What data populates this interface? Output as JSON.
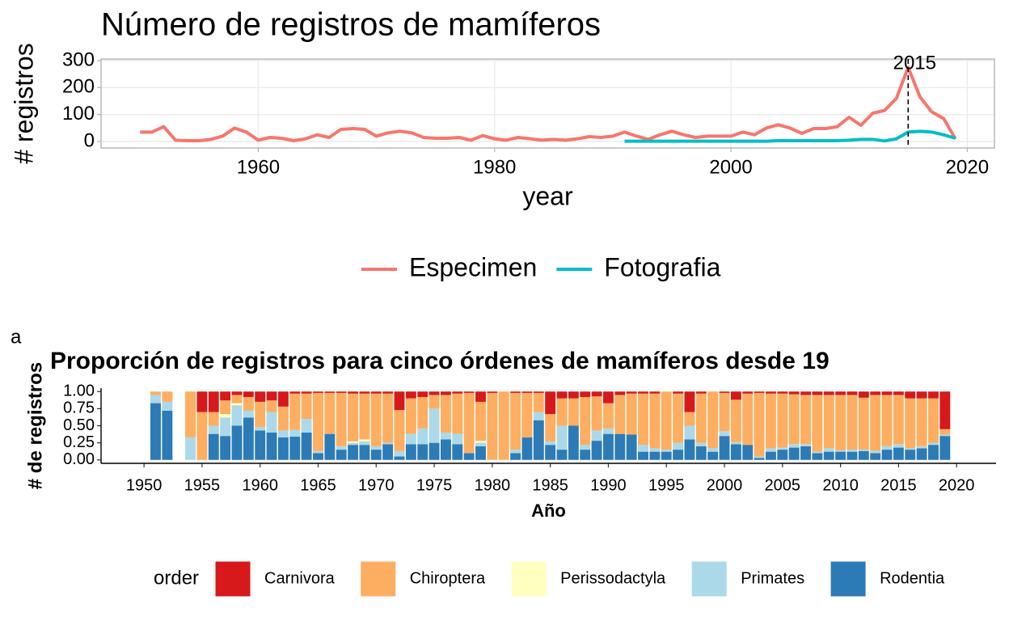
{
  "chart_data": [
    {
      "type": "line",
      "title": "Número de registros de mamíferos",
      "x_label": "year",
      "y_label": "# registros",
      "x": [
        1950,
        1951,
        1952,
        1953,
        1954,
        1955,
        1956,
        1957,
        1958,
        1959,
        1960,
        1961,
        1962,
        1963,
        1964,
        1965,
        1966,
        1967,
        1968,
        1969,
        1970,
        1971,
        1972,
        1973,
        1974,
        1975,
        1976,
        1977,
        1978,
        1979,
        1980,
        1981,
        1982,
        1983,
        1984,
        1985,
        1986,
        1987,
        1988,
        1989,
        1990,
        1991,
        1992,
        1993,
        1994,
        1995,
        1996,
        1997,
        1998,
        1999,
        2000,
        2001,
        2002,
        2003,
        2004,
        2005,
        2006,
        2007,
        2008,
        2009,
        2010,
        2011,
        2012,
        2013,
        2014,
        2015,
        2016,
        2017,
        2018,
        2019
      ],
      "series": [
        {
          "name": "Especimen",
          "color": "#F8766D",
          "values": [
            35,
            35,
            55,
            5,
            3,
            3,
            8,
            20,
            50,
            35,
            5,
            15,
            12,
            3,
            10,
            25,
            15,
            45,
            48,
            45,
            20,
            32,
            38,
            32,
            15,
            12,
            12,
            15,
            5,
            22,
            10,
            5,
            15,
            10,
            5,
            8,
            5,
            10,
            18,
            15,
            20,
            35,
            20,
            8,
            25,
            38,
            25,
            15,
            20,
            20,
            20,
            35,
            25,
            50,
            62,
            50,
            30,
            48,
            48,
            55,
            90,
            60,
            105,
            115,
            160,
            275,
            165,
            110,
            85,
            10
          ]
        },
        {
          "name": "Fotografia",
          "color": "#00BFC4",
          "values": [
            null,
            null,
            null,
            null,
            null,
            null,
            null,
            null,
            null,
            null,
            null,
            null,
            null,
            null,
            null,
            null,
            null,
            null,
            null,
            null,
            null,
            null,
            null,
            null,
            null,
            null,
            null,
            null,
            null,
            null,
            null,
            null,
            null,
            null,
            null,
            null,
            null,
            null,
            null,
            null,
            null,
            1,
            1,
            1,
            1,
            1,
            1,
            1,
            1,
            1,
            1,
            1,
            1,
            1,
            3,
            3,
            3,
            3,
            3,
            3,
            5,
            8,
            8,
            2,
            10,
            35,
            38,
            35,
            25,
            12
          ]
        }
      ],
      "xlim": [
        1946.7,
        2022.3
      ],
      "xticks": [
        1960,
        1980,
        2000,
        2020
      ],
      "ylim": [
        -24,
        306
      ],
      "yticks": [
        0,
        100,
        200,
        300
      ],
      "grid": true,
      "legend": "bottom",
      "annotations": [
        {
          "x": 2015,
          "label": "2015"
        }
      ]
    },
    {
      "type": "stacked_bar",
      "tag": "a",
      "title": "Proporción de registros para cinco órdenes de mamíferos desde 19",
      "x_label": "Año",
      "y_label": "# de registros",
      "x": [
        1951,
        1952,
        1954,
        1955,
        1956,
        1957,
        1958,
        1959,
        1960,
        1961,
        1962,
        1963,
        1964,
        1965,
        1966,
        1967,
        1968,
        1969,
        1970,
        1971,
        1972,
        1973,
        1974,
        1975,
        1976,
        1977,
        1978,
        1979,
        1980,
        1981,
        1982,
        1983,
        1984,
        1985,
        1986,
        1987,
        1988,
        1989,
        1990,
        1991,
        1992,
        1993,
        1994,
        1995,
        1996,
        1997,
        1998,
        1999,
        2000,
        2001,
        2002,
        2003,
        2004,
        2005,
        2006,
        2007,
        2008,
        2009,
        2010,
        2011,
        2012,
        2013,
        2014,
        2015,
        2016,
        2017,
        2018,
        2019
      ],
      "series": [
        {
          "name": "Carnivora",
          "color": "#d7191c",
          "values": [
            0,
            0,
            0,
            0.3,
            0.3,
            0.13,
            0.05,
            0.08,
            0.15,
            0.13,
            0.22,
            0.03,
            0.03,
            0.02,
            0.02,
            0.02,
            0.03,
            0.03,
            0.03,
            0.03,
            0.27,
            0.1,
            0.08,
            0.05,
            0.05,
            0.03,
            0.02,
            0.15,
            0.02,
            0,
            0.02,
            0.02,
            0.02,
            0.33,
            0.1,
            0.1,
            0.08,
            0.07,
            0.17,
            0.05,
            0.03,
            0.03,
            0.03,
            0,
            0.03,
            0.3,
            0.03,
            0,
            0.02,
            0.12,
            0.03,
            0.02,
            0.03,
            0.03,
            0.04,
            0.05,
            0.05,
            0.05,
            0.05,
            0.05,
            0.09,
            0.05,
            0.05,
            0.05,
            0.1,
            0.1,
            0.1,
            0.55
          ]
        },
        {
          "name": "Chiroptera",
          "color": "#fdae61",
          "values": [
            0.05,
            0.15,
            0.67,
            0.7,
            0.2,
            0.2,
            0.12,
            0.2,
            0.37,
            0.17,
            0.35,
            0.53,
            0.37,
            0.85,
            0.6,
            0.78,
            0.7,
            0.67,
            0.77,
            0.72,
            0.6,
            0.52,
            0.46,
            0.2,
            0.55,
            0.59,
            0.88,
            0.57,
            0.98,
            1,
            0.83,
            0.65,
            0.28,
            0.4,
            0.4,
            0.4,
            0.7,
            0.5,
            0.37,
            0.57,
            0.6,
            0.75,
            0.8,
            0.85,
            0.72,
            0.2,
            0.72,
            0.83,
            0.56,
            0.62,
            0.75,
            0.93,
            0.8,
            0.79,
            0.73,
            0.72,
            0.83,
            0.78,
            0.81,
            0.8,
            0.76,
            0.82,
            0.75,
            0.72,
            0.73,
            0.7,
            0.65,
            0.08
          ]
        },
        {
          "name": "Perissodactyla",
          "color": "#ffffbf",
          "values": [
            0,
            0,
            0,
            0,
            0,
            0.05,
            0.03,
            0,
            0,
            0,
            0,
            0,
            0,
            0,
            0,
            0,
            0.02,
            0.03,
            0,
            0,
            0,
            0,
            0,
            0,
            0,
            0,
            0,
            0.03,
            0,
            0,
            0,
            0,
            0,
            0,
            0,
            0,
            0,
            0,
            0,
            0,
            0,
            0,
            0,
            0,
            0,
            0,
            0,
            0,
            0,
            0,
            0,
            0,
            0,
            0,
            0,
            0,
            0,
            0,
            0,
            0,
            0,
            0,
            0,
            0,
            0,
            0,
            0,
            0
          ]
        },
        {
          "name": "Primates",
          "color": "#abd9e9",
          "values": [
            0.12,
            0.13,
            0.33,
            0,
            0.12,
            0.27,
            0.3,
            0.1,
            0.05,
            0.3,
            0.1,
            0.1,
            0.2,
            0.03,
            0,
            0.05,
            0.03,
            0.05,
            0.05,
            0.02,
            0.08,
            0.15,
            0.23,
            0.5,
            0.1,
            0.15,
            0,
            0.05,
            0,
            0,
            0.05,
            0,
            0.12,
            0.05,
            0.35,
            0,
            0.07,
            0.15,
            0.08,
            0,
            0,
            0.1,
            0.05,
            0.03,
            0.1,
            0.2,
            0.05,
            0.05,
            0.07,
            0.03,
            0,
            0.02,
            0.05,
            0.03,
            0.05,
            0.03,
            0.02,
            0.05,
            0.02,
            0.03,
            0.02,
            0.03,
            0.05,
            0.05,
            0.02,
            0.03,
            0.03,
            0.02
          ]
        },
        {
          "name": "Rodentia",
          "color": "#2c7bb6",
          "values": [
            0.83,
            0.72,
            0,
            0,
            0.38,
            0.35,
            0.5,
            0.62,
            0.43,
            0.4,
            0.33,
            0.34,
            0.4,
            0.1,
            0.38,
            0.15,
            0.22,
            0.22,
            0.15,
            0.23,
            0.05,
            0.23,
            0.23,
            0.25,
            0.3,
            0.23,
            0.1,
            0.2,
            0,
            0,
            0.1,
            0.33,
            0.58,
            0.22,
            0.15,
            0.5,
            0.15,
            0.28,
            0.38,
            0.38,
            0.37,
            0.12,
            0.12,
            0.12,
            0.15,
            0.3,
            0.2,
            0.12,
            0.35,
            0.23,
            0.22,
            0.03,
            0.12,
            0.15,
            0.18,
            0.2,
            0.1,
            0.12,
            0.12,
            0.12,
            0.13,
            0.1,
            0.15,
            0.18,
            0.15,
            0.17,
            0.22,
            0.35
          ]
        }
      ],
      "xlim": [
        1946.3,
        2023.4
      ],
      "xticks": [
        1950,
        1955,
        1960,
        1965,
        1970,
        1975,
        1980,
        1985,
        1990,
        1995,
        2000,
        2005,
        2010,
        2015,
        2020
      ],
      "ylim": [
        -0.05,
        1.05
      ],
      "yticks": [
        {
          "value": 0,
          "label": "0.00"
        },
        {
          "value": 0.25,
          "label": "0.25"
        },
        {
          "value": 0.5,
          "label": "0.50"
        },
        {
          "value": 0.75,
          "label": "0.75"
        },
        {
          "value": 1,
          "label": "1.00"
        }
      ],
      "legend": "bottom",
      "legend_title": "order"
    }
  ]
}
